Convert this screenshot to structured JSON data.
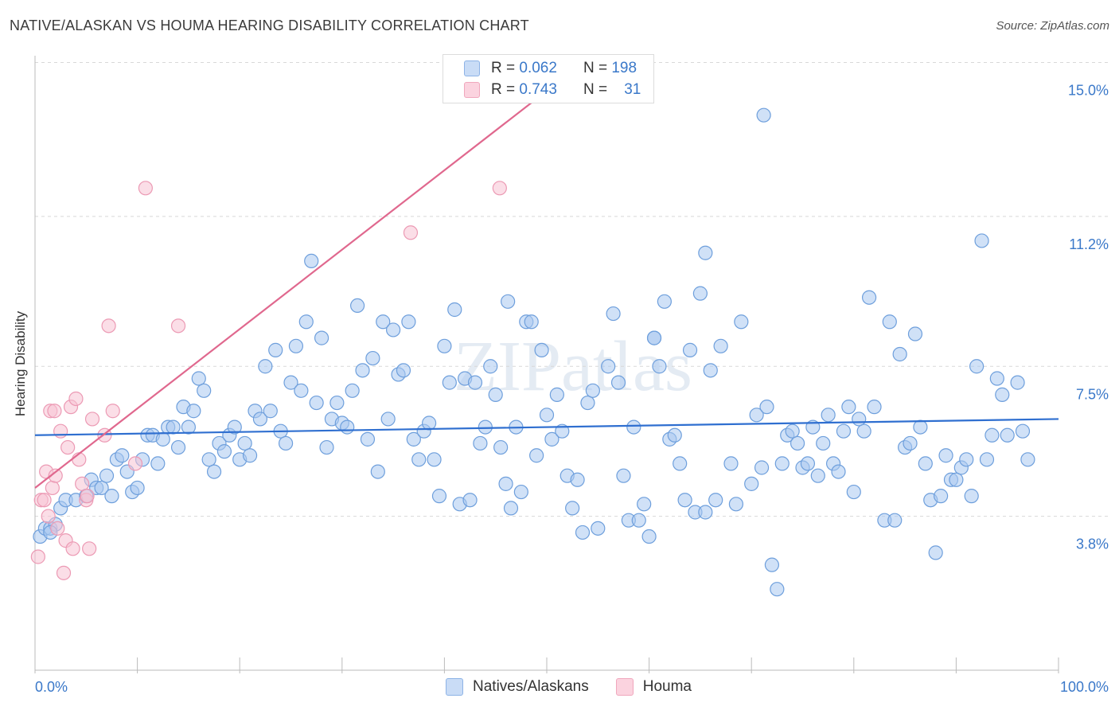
{
  "title": "NATIVE/ALASKAN VS HOUMA HEARING DISABILITY CORRELATION CHART",
  "source": "Source: ZipAtlas.com",
  "watermark": "ZIPatlas",
  "colors": {
    "blue_fill": "#aac8f0",
    "blue_stroke": "#6e9fdc",
    "blue_line": "#2f6fd0",
    "pink_fill": "#f7c2d3",
    "pink_stroke": "#ec9ab4",
    "pink_line": "#e0688e",
    "value_text": "#3a78c9",
    "grid": "#d8d8d8"
  },
  "legend_top": {
    "rows": [
      {
        "r_label": "R =",
        "r_value": "0.062",
        "n_label": "N =",
        "n_value": "198"
      },
      {
        "r_label": "R =",
        "r_value": "0.743",
        "n_label": "N =",
        "n_value": "31"
      }
    ]
  },
  "legend_bottom": [
    "Natives/Alaskans",
    "Houma"
  ],
  "chart_data": {
    "type": "scatter",
    "title": "NATIVE/ALASKAN VS HOUMA HEARING DISABILITY CORRELATION CHART",
    "xlabel": "",
    "ylabel": "Hearing Disability",
    "xlim": [
      0,
      100
    ],
    "ylim": [
      0,
      15.4
    ],
    "x_tick_labels": [
      "0.0%",
      "100.0%"
    ],
    "y_ticks": [
      3.8,
      7.5,
      11.2,
      15.0
    ],
    "y_tick_labels": [
      "3.8%",
      "7.5%",
      "11.2%",
      "15.0%"
    ],
    "grid": true,
    "legend_position": "top-center",
    "series": [
      {
        "name": "Natives/Alaskans",
        "color": "#aac8f0",
        "trend": {
          "x": [
            0,
            100
          ],
          "y": [
            5.8,
            6.2
          ]
        },
        "points": [
          [
            0.5,
            3.3
          ],
          [
            1,
            3.5
          ],
          [
            1.5,
            3.5
          ],
          [
            2,
            3.6
          ],
          [
            2.5,
            4
          ],
          [
            3,
            4.2
          ],
          [
            4,
            4.2
          ],
          [
            5,
            4.3
          ],
          [
            5.5,
            4.7
          ],
          [
            6,
            4.5
          ],
          [
            6.5,
            4.5
          ],
          [
            7,
            4.8
          ],
          [
            7.5,
            4.3
          ],
          [
            8,
            5.2
          ],
          [
            8.5,
            5.3
          ],
          [
            9,
            4.9
          ],
          [
            9.5,
            4.4
          ],
          [
            10,
            4.5
          ],
          [
            10.5,
            5.2
          ],
          [
            11,
            5.8
          ],
          [
            11.5,
            5.8
          ],
          [
            12,
            5.1
          ],
          [
            12.5,
            5.7
          ],
          [
            13,
            6
          ],
          [
            13.5,
            6
          ],
          [
            14,
            5.5
          ],
          [
            14.5,
            6.5
          ],
          [
            15,
            6
          ],
          [
            15.5,
            6.4
          ],
          [
            16,
            7.2
          ],
          [
            16.5,
            6.9
          ],
          [
            17,
            5.2
          ],
          [
            17.5,
            4.9
          ],
          [
            18,
            5.6
          ],
          [
            18.5,
            5.4
          ],
          [
            19,
            5.8
          ],
          [
            19.5,
            6
          ],
          [
            20,
            5.2
          ],
          [
            20.5,
            5.6
          ],
          [
            21,
            5.3
          ],
          [
            21.5,
            6.4
          ],
          [
            22,
            6.2
          ],
          [
            22.5,
            7.5
          ],
          [
            23,
            6.4
          ],
          [
            23.5,
            7.9
          ],
          [
            24,
            5.9
          ],
          [
            24.5,
            5.6
          ],
          [
            25,
            7.1
          ],
          [
            25.5,
            8
          ],
          [
            26,
            6.9
          ],
          [
            26.5,
            8.6
          ],
          [
            27,
            10.1
          ],
          [
            27.5,
            6.6
          ],
          [
            28,
            8.2
          ],
          [
            28.5,
            5.5
          ],
          [
            29,
            6.2
          ],
          [
            29.5,
            6.6
          ],
          [
            30,
            6.1
          ],
          [
            30.5,
            6
          ],
          [
            31,
            6.9
          ],
          [
            31.5,
            9
          ],
          [
            32,
            7.4
          ],
          [
            32.5,
            5.7
          ],
          [
            33,
            7.7
          ],
          [
            33.5,
            4.9
          ],
          [
            34,
            8.6
          ],
          [
            34.5,
            6.2
          ],
          [
            35,
            8.4
          ],
          [
            35.5,
            7.3
          ],
          [
            36,
            7.4
          ],
          [
            36.5,
            8.6
          ],
          [
            37,
            5.7
          ],
          [
            37.5,
            5.2
          ],
          [
            38,
            5.9
          ],
          [
            38.5,
            6.1
          ],
          [
            39,
            5.2
          ],
          [
            39.5,
            4.3
          ],
          [
            40,
            8
          ],
          [
            40.5,
            7.1
          ],
          [
            41,
            8.9
          ],
          [
            41.5,
            4.1
          ],
          [
            42,
            7.2
          ],
          [
            42.5,
            4.2
          ],
          [
            43,
            7.1
          ],
          [
            43.5,
            5.6
          ],
          [
            44,
            6
          ],
          [
            44.5,
            7.5
          ],
          [
            45,
            6.8
          ],
          [
            45.5,
            5.5
          ],
          [
            46,
            4.6
          ],
          [
            46.5,
            4
          ],
          [
            47,
            6
          ],
          [
            47.5,
            4.4
          ],
          [
            48,
            8.6
          ],
          [
            48.5,
            8.6
          ],
          [
            49,
            5.3
          ],
          [
            49.5,
            7.9
          ],
          [
            50,
            6.3
          ],
          [
            50.5,
            5.7
          ],
          [
            51,
            6.8
          ],
          [
            51.5,
            5.9
          ],
          [
            52,
            4.8
          ],
          [
            52.5,
            4
          ],
          [
            53,
            4.7
          ],
          [
            53.5,
            3.4
          ],
          [
            54,
            6.6
          ],
          [
            54.5,
            6.9
          ],
          [
            55,
            3.5
          ],
          [
            56,
            7.5
          ],
          [
            56.5,
            8.8
          ],
          [
            57,
            7.1
          ],
          [
            57.5,
            4.8
          ],
          [
            58,
            3.7
          ],
          [
            58.5,
            6
          ],
          [
            59,
            3.7
          ],
          [
            59.5,
            4.1
          ],
          [
            60,
            3.3
          ],
          [
            60.5,
            8.2
          ],
          [
            61,
            7.5
          ],
          [
            61.5,
            9.1
          ],
          [
            62,
            5.7
          ],
          [
            62.5,
            5.8
          ],
          [
            63,
            5.1
          ],
          [
            63.5,
            4.2
          ],
          [
            64,
            7.9
          ],
          [
            64.5,
            3.9
          ],
          [
            65,
            9.3
          ],
          [
            65.5,
            3.9
          ],
          [
            66,
            7.4
          ],
          [
            66.5,
            4.2
          ],
          [
            67,
            8
          ],
          [
            68,
            5.1
          ],
          [
            68.5,
            4.1
          ],
          [
            69,
            8.6
          ],
          [
            70,
            4.6
          ],
          [
            70.5,
            6.3
          ],
          [
            71,
            5
          ],
          [
            71.5,
            6.5
          ],
          [
            72,
            2.6
          ],
          [
            72.5,
            2
          ],
          [
            73,
            5.1
          ],
          [
            73.5,
            5.8
          ],
          [
            74,
            5.9
          ],
          [
            74.5,
            5.6
          ],
          [
            75,
            5
          ],
          [
            75.5,
            5.1
          ],
          [
            76,
            6
          ],
          [
            76.5,
            4.8
          ],
          [
            77,
            5.6
          ],
          [
            77.5,
            6.3
          ],
          [
            78,
            5.1
          ],
          [
            78.5,
            4.9
          ],
          [
            79,
            5.9
          ],
          [
            79.5,
            6.5
          ],
          [
            80,
            4.4
          ],
          [
            80.5,
            6.2
          ],
          [
            81,
            5.9
          ],
          [
            81.5,
            9.2
          ],
          [
            82,
            6.5
          ],
          [
            83,
            3.7
          ],
          [
            83.5,
            8.6
          ],
          [
            84,
            3.7
          ],
          [
            84.5,
            7.8
          ],
          [
            85,
            5.5
          ],
          [
            85.5,
            5.6
          ],
          [
            86,
            8.3
          ],
          [
            86.5,
            6
          ],
          [
            87,
            5.1
          ],
          [
            87.5,
            4.2
          ],
          [
            88,
            2.9
          ],
          [
            88.5,
            4.3
          ],
          [
            89,
            5.3
          ],
          [
            89.5,
            4.7
          ],
          [
            90,
            4.7
          ],
          [
            90.5,
            5
          ],
          [
            91,
            5.2
          ],
          [
            91.5,
            4.3
          ],
          [
            92,
            7.5
          ],
          [
            93,
            5.2
          ],
          [
            93.5,
            5.8
          ],
          [
            94,
            7.2
          ],
          [
            94.5,
            6.8
          ],
          [
            95,
            5.8
          ],
          [
            96,
            7.1
          ],
          [
            96.5,
            5.9
          ],
          [
            97,
            5.2
          ],
          [
            60.5,
            8.2
          ],
          [
            1.5,
            3.4
          ],
          [
            92.5,
            10.6
          ],
          [
            71.2,
            13.7
          ],
          [
            65.5,
            10.3
          ],
          [
            46.2,
            9.1
          ]
        ]
      },
      {
        "name": "Houma",
        "color": "#f7c2d3",
        "trend": {
          "x": [
            0,
            50
          ],
          "y": [
            4.5,
            14.3
          ]
        },
        "points": [
          [
            0.3,
            2.8
          ],
          [
            0.6,
            4.2
          ],
          [
            0.9,
            4.2
          ],
          [
            1.1,
            4.9
          ],
          [
            1.3,
            3.8
          ],
          [
            1.5,
            6.4
          ],
          [
            1.7,
            4.5
          ],
          [
            1.9,
            6.4
          ],
          [
            2,
            4.8
          ],
          [
            2.2,
            3.5
          ],
          [
            2.5,
            5.9
          ],
          [
            2.8,
            2.4
          ],
          [
            3,
            3.2
          ],
          [
            3.2,
            5.5
          ],
          [
            3.5,
            6.5
          ],
          [
            3.7,
            3
          ],
          [
            4,
            6.7
          ],
          [
            4.3,
            5.2
          ],
          [
            4.6,
            4.6
          ],
          [
            5,
            4.2
          ],
          [
            5.3,
            3
          ],
          [
            5.6,
            6.2
          ],
          [
            6.8,
            5.8
          ],
          [
            7.2,
            8.5
          ],
          [
            7.6,
            6.4
          ],
          [
            9.8,
            5.1
          ],
          [
            10.8,
            11.9
          ],
          [
            14,
            8.5
          ],
          [
            36.7,
            10.8
          ],
          [
            45.4,
            11.9
          ],
          [
            5.1,
            4.3
          ]
        ]
      }
    ]
  }
}
